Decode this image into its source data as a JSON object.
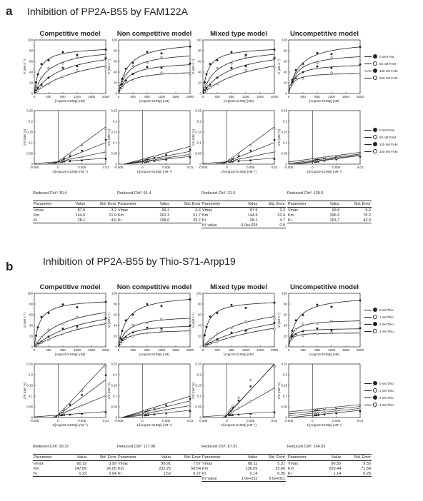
{
  "panels": [
    {
      "letter": "a",
      "title": "Inhibition of PP2A-B55 by FAM122A",
      "legend": [
        "0 nM FAM",
        "50 nM FAM",
        "125 nM FAM",
        "250 nM FAM"
      ],
      "models": [
        {
          "title": "Competitive model",
          "chi": "Reduced Chi²: 30.4",
          "rows": [
            [
              "Parameter",
              "Value",
              "Std. Error"
            ],
            [
              "Vmax",
              "87.9",
              "3.2"
            ],
            [
              "Km",
              "144.6",
              "21.9"
            ],
            [
              "Ki",
              "28.1",
              "4.6"
            ]
          ]
        },
        {
          "title": "Non competitive model",
          "chi": "Reduced Chi²: 91.4",
          "rows": [
            [
              "Parameter",
              "Value",
              "Std. Error"
            ],
            [
              "Vmax",
              "99.2",
              "6.6"
            ],
            [
              "Km",
              "262.3",
              "51.7"
            ],
            [
              "Ki",
              "198.0",
              "35.7"
            ]
          ]
        },
        {
          "title": "Mixed type model",
          "chi": "Reduced Chi²: 31.6",
          "rows": [
            [
              "Parameter",
              "Value",
              "Std. Error"
            ],
            [
              "Vmax",
              "87.9",
              "3.3"
            ],
            [
              "Km",
              "144.6",
              "22.4"
            ],
            [
              "Ki",
              "28.1",
              "4.7"
            ],
            [
              "Ki' value",
              "5.0e+025",
              "0.0"
            ]
          ]
        },
        {
          "title": "Uncompetitive model",
          "chi": "Reduced Chi²: 130.9",
          "rows": [
            [
              "Parameter",
              "Value",
              "Std. Error"
            ],
            [
              "Vmax",
              "99.8",
              "9.0"
            ],
            [
              "Km",
              "296.6",
              "76.2"
            ],
            [
              "Ki",
              "163.7",
              "43.0"
            ]
          ]
        }
      ]
    },
    {
      "letter": "b",
      "title": "Inhibition of PP2A-B55 by Thio-S71-Arpp19",
      "legend": [
        "0 nM Thio",
        "1 nM Thio",
        "2 nM Thio",
        "3 nM Thio"
      ],
      "models": [
        {
          "title": "Competitive model",
          "chi": "Reduced Chi²: 39.37",
          "rows": [
            [
              "Parameter",
              "Value",
              "Std. Error"
            ],
            [
              "Vmax",
              "90.19",
              "3.99"
            ],
            [
              "Km",
              "147.89",
              "26.05"
            ],
            [
              "Ki",
              "0.22",
              "0.04"
            ]
          ]
        },
        {
          "title": "Non competitive model",
          "chi": "Reduced Chi²: 117.08",
          "rows": [
            [
              "Parameter",
              "Value",
              "Std. Error"
            ],
            [
              "Vmax",
              "98.91",
              "7.67"
            ],
            [
              "Km",
              "232.25",
              "56.54"
            ],
            [
              "Ki",
              "1.52",
              "0.27"
            ]
          ]
        },
        {
          "title": "Mixed type model",
          "chi": "Reduced Chi²: 67.91",
          "rows": [
            [
              "Parameter",
              "Value",
              "Std. Error"
            ],
            [
              "Vmax",
              "88.11",
              "5.31"
            ],
            [
              "Km",
              "136.69",
              "33.66"
            ],
            [
              "Ki",
              "0.14",
              "0.05"
            ],
            [
              "Ki' value",
              "1.0e+011",
              "6.0e+011"
            ]
          ]
        },
        {
          "title": "Uncompetitive model",
          "chi": "Reduced Chi²: 164.92",
          "rows": [
            [
              "Parameter",
              "Value",
              "Std. Error"
            ],
            [
              "Vmax",
              "96.35",
              "9.55"
            ],
            [
              "Km",
              "220.44",
              "71.54"
            ],
            [
              "Ki",
              "1.14",
              "0.28"
            ]
          ]
        }
      ]
    }
  ],
  "chart_data": {
    "type": "scatter",
    "mm_axes": {
      "xlabel": "[Arpp19-S109p] (nM)",
      "ylabel": "V (nM s⁻¹)",
      "xlim": [
        0,
        2000
      ],
      "ylim": [
        0,
        100
      ],
      "xticks": [
        "0",
        "400",
        "800",
        "1200",
        "1600",
        "2000"
      ],
      "yticks": [
        "0",
        "20",
        "40",
        "60",
        "80",
        "100"
      ]
    },
    "lb_axes": {
      "xlabel": "1/[Arpp19-S109p] (nM⁻¹)",
      "ylabel": "1/V (nM⁻¹s)",
      "xlim": [
        -0.005,
        0.01
      ],
      "ylim": [
        0,
        0.25
      ],
      "xticks": [
        "-0.005",
        "0",
        "0.005",
        "0.01"
      ],
      "yticks": [
        "0",
        "0.05",
        "0.1",
        "0.15",
        "0.2",
        "0.25"
      ]
    },
    "substrate_nM": [
      50,
      100,
      200,
      400,
      800,
      1200,
      2000
    ],
    "panel_a_inhibitor_nM": [
      0,
      50,
      125,
      250
    ],
    "panel_b_inhibitor_nM": [
      0,
      1,
      2,
      3
    ]
  }
}
